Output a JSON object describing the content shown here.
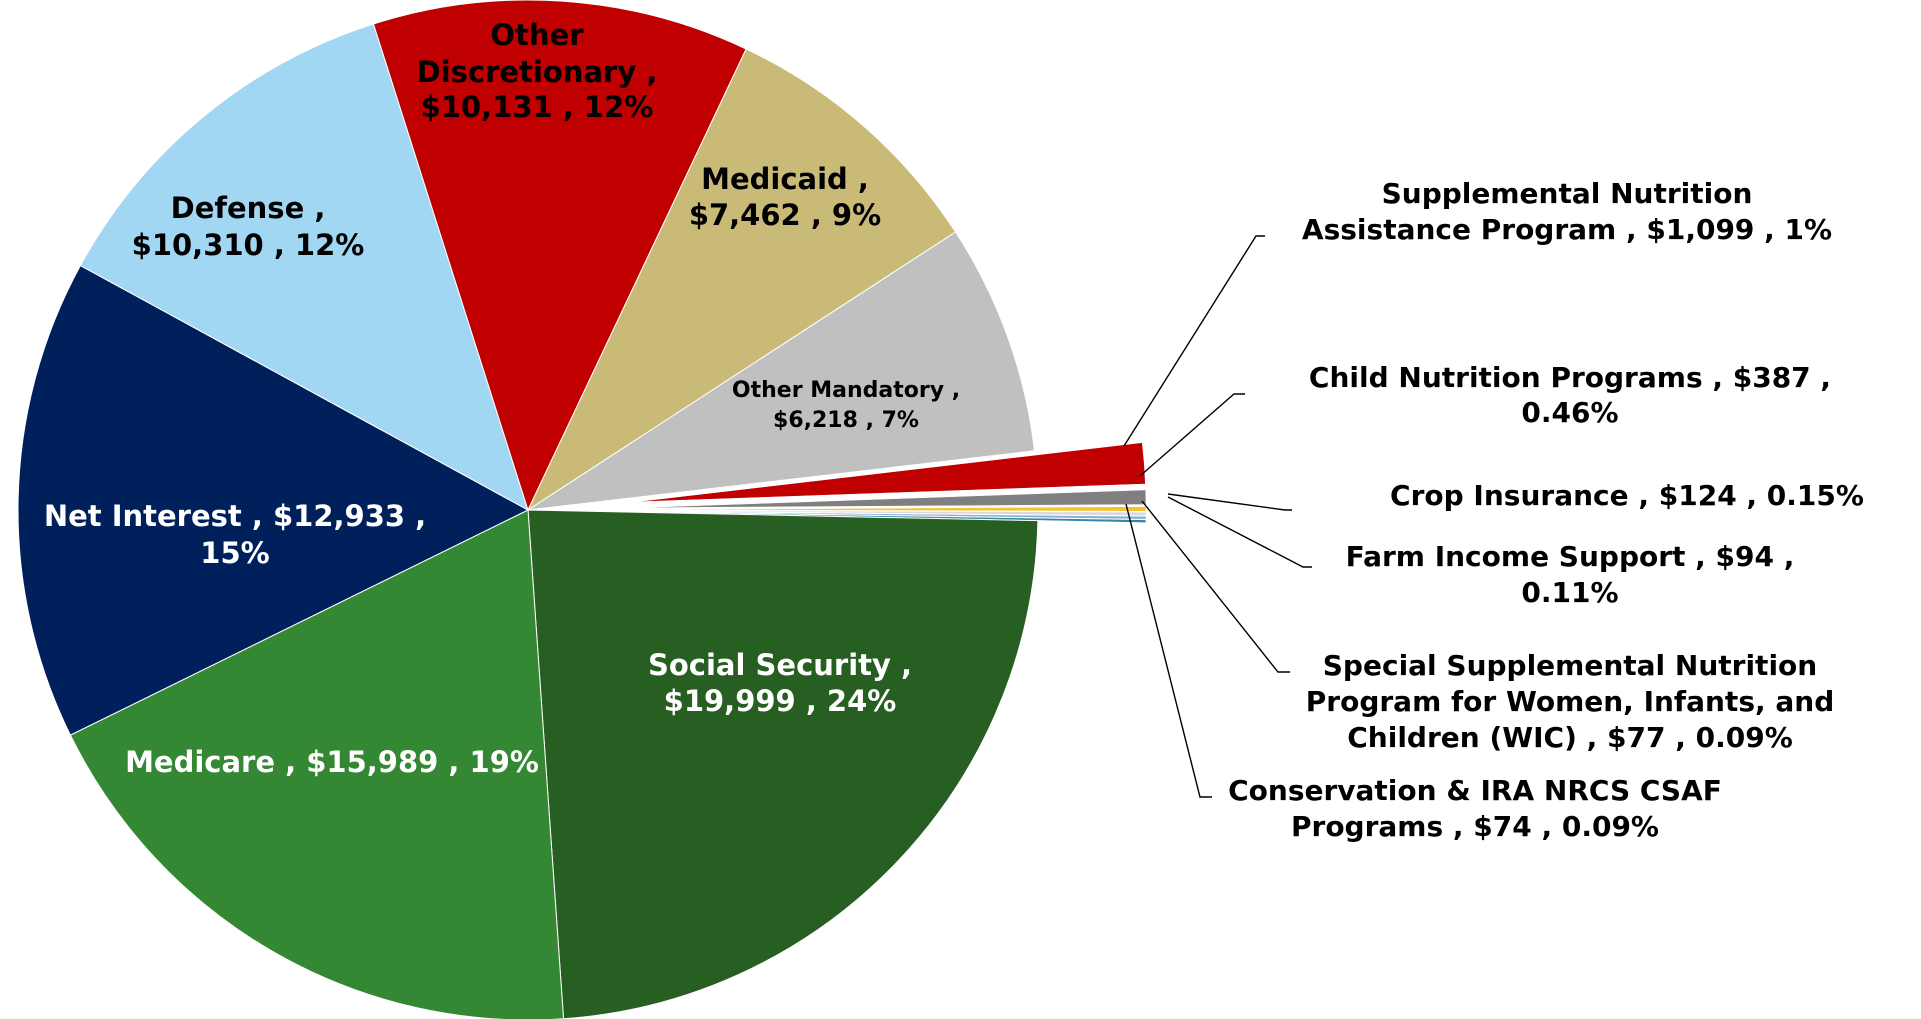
{
  "chart_data": {
    "type": "pie",
    "title": "",
    "slices": [
      {
        "name": "Social Security",
        "value": 19999,
        "value_label": "$19,999",
        "percent_label": "24%",
        "color": "#275E21",
        "label_color": "#ffffff",
        "label_lines": [
          "Social Security ,",
          "$19,999 , 24%"
        ]
      },
      {
        "name": "Medicare",
        "value": 15989,
        "value_label": "$15,989",
        "percent_label": "19%",
        "color": "#348834",
        "label_color": "#ffffff",
        "label_lines": [
          "Medicare ,  $15,989 , 19%"
        ]
      },
      {
        "name": "Net Interest",
        "value": 12933,
        "value_label": "$12,933",
        "percent_label": "15%",
        "color": "#00205B",
        "label_color": "#ffffff",
        "label_lines": [
          "Net Interest ,  $12,933 ,",
          "15%"
        ]
      },
      {
        "name": "Defense",
        "value": 10310,
        "value_label": "$10,310",
        "percent_label": "12%",
        "color": "#A1D7F2",
        "label_color": "#000000",
        "label_lines": [
          "Defense ,",
          "$10,310 , 12%"
        ]
      },
      {
        "name": "Other Discretionary",
        "value": 10131,
        "value_label": "$10,131",
        "percent_label": "12%",
        "color": "#C00000",
        "label_color": "#000000",
        "label_lines": [
          "Other",
          "Discretionary ,",
          "$10,131 , 12%"
        ]
      },
      {
        "name": "Medicaid",
        "value": 7462,
        "value_label": "$7,462",
        "percent_label": "9%",
        "color": "#C9BA78",
        "label_color": "#000000",
        "label_lines": [
          "Medicaid ,",
          "$7,462 , 9%"
        ]
      },
      {
        "name": "Other Mandatory",
        "value": 6218,
        "value_label": "$6,218",
        "percent_label": "7%",
        "color": "#C0C0C0",
        "label_color": "#000000",
        "label_lines": [
          "Other Mandatory ,",
          "$6,218 , 7%"
        ]
      },
      {
        "name": "Supplemental Nutrition Assistance Program",
        "value": 1099,
        "value_label": "$1,099",
        "percent_label": "1%",
        "color": "#C00000",
        "label_color": "#000000",
        "label_lines": [
          "Supplemental Nutrition",
          "Assistance Program ,  $1,099 , 1%"
        ]
      },
      {
        "name": "Child Nutrition Programs",
        "value": 387,
        "value_label": "$387",
        "percent_label": "0.46%",
        "color": "#7F7F7F",
        "label_color": "#000000",
        "label_lines": [
          "Child Nutrition Programs ,  $387 ,",
          "0.46%"
        ]
      },
      {
        "name": "Crop Insurance",
        "value": 124,
        "value_label": "$124",
        "percent_label": "0.15%",
        "color": "#F2C230",
        "label_color": "#000000",
        "label_lines": [
          "Crop Insurance ,  $124 , 0.15%"
        ]
      },
      {
        "name": "Farm Income Support",
        "value": 94,
        "value_label": "$94",
        "percent_label": "0.11%",
        "color": "#D9D9D9",
        "label_color": "#000000",
        "label_lines": [
          "Farm Income Support ,  $94 ,",
          "0.11%"
        ]
      },
      {
        "name": "Special Supplemental Nutrition Program for Women, Infants, and Children (WIC)",
        "value": 77,
        "value_label": "$77",
        "percent_label": "0.09%",
        "color": "#8EAADB",
        "label_color": "#000000",
        "label_lines": [
          "Special Supplemental Nutrition",
          "Program for Women, Infants, and",
          "Children (WIC) ,  $77 , 0.09%"
        ]
      },
      {
        "name": "Conservation & IRA NRCS CSAF Programs",
        "value": 74,
        "value_label": "$74",
        "percent_label": "0.09%",
        "color": "#2E8B9A",
        "label_color": "#000000",
        "label_lines": [
          "Conservation & IRA NRCS CSAF",
          "Programs ,  $74 , 0.09%"
        ]
      }
    ],
    "legend": "none"
  }
}
